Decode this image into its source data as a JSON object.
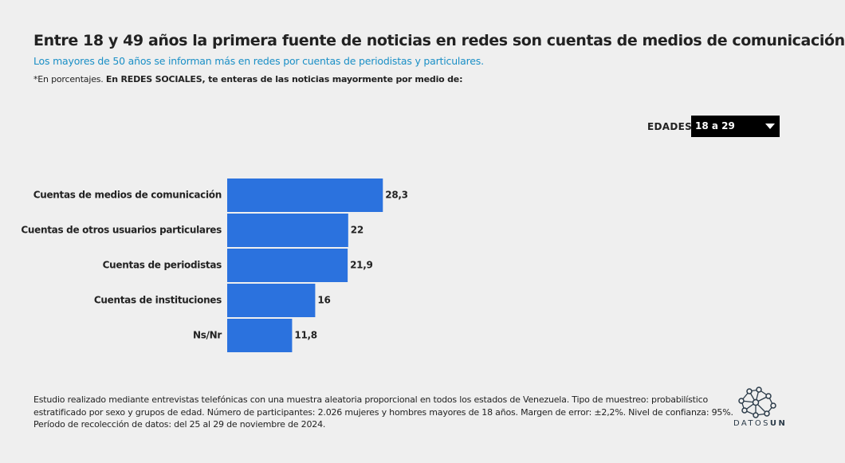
{
  "chart_data": {
    "type": "bar",
    "orientation": "horizontal",
    "title": "Entre 18 y 49 años la primera fuente de noticias en redes son cuentas de medios de comunicación",
    "subtitle": "Los mayores de 50 años se informan más en redes por cuentas de periodistas y particulares.",
    "note": "*En porcentajes.",
    "question": "En REDES SOCIALES, te enteras de las noticias mayormente por medio de:",
    "filter_label": "EDADES",
    "filter_value": "18 a 29",
    "categories": [
      "Cuentas de medios de comunicación",
      "Cuentas de otros usuarios particulares",
      "Cuentas de periodistas",
      "Cuentas de instituciones",
      "Ns/Nr"
    ],
    "values": [
      28.3,
      22,
      21.9,
      16,
      11.8
    ],
    "value_labels": [
      "28,3",
      "22",
      "21,9",
      "16",
      "11,8"
    ],
    "color": "#2b72de"
  },
  "footer": [
    "Estudio realizado mediante entrevistas telefónicas con una muestra aleatoria proporcional en todos los estados de Venezuela. Tipo de muestreo: probabilístico",
    "estratificado por sexo y grupos de edad. Número de participantes: 2.026 mujeres y hombres mayores de 18 años. Margen de error: ±2,2%. Nivel de confianza: 95%.",
    "Período de recolección de datos: del 25 al 29 de noviembre de 2024."
  ],
  "logo": {
    "part1": "DATOS",
    "part2": "UN"
  }
}
